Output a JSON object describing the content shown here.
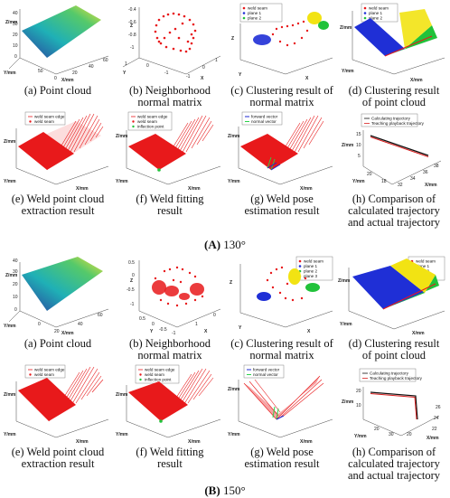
{
  "sections": [
    {
      "label_letter": "(A)",
      "label_angle": "130°",
      "panels": [
        {
          "caption_1": "(a) Point cloud",
          "caption_2": "",
          "z": "Z/mm",
          "y": "Y/mm",
          "x": "X/mm",
          "ticks": [
            "0",
            "10",
            "20",
            "30",
            "40",
            "50",
            "0",
            "20",
            "40",
            "60"
          ]
        },
        {
          "caption_1": "(b) Neighborhood",
          "caption_2": "normal matrix",
          "z": "Z",
          "y": "Y",
          "x": "X",
          "ticks": [
            "-0.4",
            "-0.6",
            "-0.8",
            "-1",
            "1",
            "0",
            "-1",
            "-1",
            "0",
            "1"
          ]
        },
        {
          "caption_1": "(c) Clustering result of",
          "caption_2": "normal matrix",
          "z": "Z",
          "y": "Y",
          "x": "X",
          "legend": [
            "weld seam",
            "plane 1",
            "plane 2"
          ]
        },
        {
          "caption_1": "(d) Clustering result",
          "caption_2": "of point cloud",
          "z": "Z/mm",
          "y": "Y/mm",
          "x": "X/mm",
          "legend": [
            "weld seam",
            "plane 1",
            "plane 2"
          ]
        },
        {
          "caption_1": "(e) Weld point cloud",
          "caption_2": "extraction result",
          "z": "Z/mm",
          "y": "Y/mm",
          "x": "X/mm",
          "legend": [
            "weld seam edge",
            "weld seam"
          ]
        },
        {
          "caption_1": "(f) Weld fitting",
          "caption_2": "result",
          "z": "Z/mm",
          "y": "Y/mm",
          "x": "X/mm",
          "legend": [
            "weld seam edge",
            "weld seam",
            "inflection point"
          ]
        },
        {
          "caption_1": "(g) Weld pose",
          "caption_2": "estimation result",
          "z": "Z/mm",
          "y": "Y/mm",
          "x": "X/mm",
          "legend": [
            "forward vector",
            "normal vector"
          ]
        },
        {
          "caption_1": "(h) Comparison of",
          "caption_2": "calculated trajectory",
          "caption_3": "and actual trajectory",
          "z": "Z/mm",
          "y": "Y/mm",
          "x": "X/mm",
          "legend": [
            "Calculating trajectory",
            "Teaching playback trajectory"
          ],
          "ticks": [
            "15",
            "10",
            "5",
            "20",
            "18",
            "32",
            "34",
            "36",
            "38"
          ]
        }
      ]
    },
    {
      "label_letter": "(B)",
      "label_angle": "150°",
      "panels": [
        {
          "caption_1": "(a) Point cloud",
          "caption_2": "",
          "z": "Z/mm",
          "y": "Y/mm",
          "x": "X/mm",
          "ticks": [
            "0",
            "10",
            "20",
            "30",
            "40",
            "0",
            "20",
            "40",
            "60"
          ]
        },
        {
          "caption_1": "(b) Neighborhood",
          "caption_2": "normal matrix",
          "z": "Z",
          "y": "Y",
          "x": "X",
          "ticks": [
            "0.5",
            "0",
            "-0.5",
            "-1",
            "0.5",
            "0",
            "-0.5",
            "-1",
            "1",
            "0"
          ]
        },
        {
          "caption_1": "(c) Clustering result of",
          "caption_2": "normal matrix",
          "z": "Z",
          "y": "Y",
          "x": "X",
          "legend": [
            "weld seam",
            "plane 1",
            "plane 2",
            "plane 3"
          ]
        },
        {
          "caption_1": "(d) Clustering result",
          "caption_2": "of point cloud",
          "z": "Z/mm",
          "y": "Y/mm",
          "x": "X/mm",
          "legend": [
            "weld seam",
            "plane 1",
            "plane 2",
            "plane 3"
          ]
        },
        {
          "caption_1": "(e) Weld point cloud",
          "caption_2": "extraction result",
          "z": "Z/mm",
          "y": "Y/mm",
          "x": "X/mm",
          "legend": [
            "weld seam edge",
            "weld seam"
          ]
        },
        {
          "caption_1": "(f) Weld fitting",
          "caption_2": "result",
          "z": "Z/mm",
          "y": "Y/mm",
          "x": "X/mm",
          "legend": [
            "weld seam edge",
            "weld seam",
            "inflection point"
          ]
        },
        {
          "caption_1": "(g) Weld pose",
          "caption_2": "estimation result",
          "z": "Z/mm",
          "y": "Y/mm",
          "x": "X/mm",
          "legend": [
            "forward vector",
            "normal vector"
          ]
        },
        {
          "caption_1": "(h) Comparison of",
          "caption_2": "calculated trajectory",
          "caption_3": "and actual trajectory",
          "z": "Z/mm",
          "y": "Y/mm",
          "x": "X/mm",
          "legend": [
            "Calculating trajectory",
            "Teaching playback trajectory"
          ],
          "ticks": [
            "20",
            "10",
            "20",
            "30",
            "20",
            "22",
            "24",
            "26"
          ]
        }
      ]
    }
  ],
  "colors": {
    "weld": "#e8191b",
    "plane1": "#1f2fd6",
    "plane2": "#21c23a",
    "plane3": "#f2e313",
    "forward": "#1c2ad0",
    "normal": "#2bd14a",
    "trajectory_calc": "#111111",
    "trajectory_teach": "#d81e1e"
  },
  "chart_data": [
    {
      "type": "scatter",
      "panel": "A(a)",
      "title": "",
      "description": "3D V-shaped point cloud surface",
      "legend": []
    },
    {
      "type": "scatter",
      "panel": "A(b)",
      "title": "",
      "legend": []
    },
    {
      "type": "scatter",
      "panel": "A(c)",
      "legend": [
        "weld seam",
        "plane 1",
        "plane 2"
      ]
    },
    {
      "type": "scatter",
      "panel": "A(d)",
      "legend": [
        "weld seam",
        "plane 1",
        "plane 2"
      ]
    },
    {
      "type": "scatter",
      "panel": "A(e)",
      "legend": [
        "weld seam edge",
        "weld seam"
      ]
    },
    {
      "type": "scatter",
      "panel": "A(f)",
      "legend": [
        "weld seam edge",
        "weld seam",
        "inflection point"
      ]
    },
    {
      "type": "scatter",
      "panel": "A(g)",
      "legend": [
        "forward vector",
        "normal vector"
      ]
    },
    {
      "type": "line",
      "panel": "A(h)",
      "legend": [
        "Calculating trajectory",
        "Teaching playback trajectory"
      ]
    },
    {
      "type": "scatter",
      "panel": "B(a)",
      "legend": []
    },
    {
      "type": "scatter",
      "panel": "B(b)",
      "legend": []
    },
    {
      "type": "scatter",
      "panel": "B(c)",
      "legend": [
        "weld seam",
        "plane 1",
        "plane 2",
        "plane 3"
      ]
    },
    {
      "type": "scatter",
      "panel": "B(d)",
      "legend": [
        "weld seam",
        "plane 1",
        "plane 2",
        "plane 3"
      ]
    },
    {
      "type": "scatter",
      "panel": "B(e)",
      "legend": [
        "weld seam edge",
        "weld seam"
      ]
    },
    {
      "type": "scatter",
      "panel": "B(f)",
      "legend": [
        "weld seam edge",
        "weld seam",
        "inflection point"
      ]
    },
    {
      "type": "scatter",
      "panel": "B(g)",
      "legend": [
        "forward vector",
        "normal vector"
      ]
    },
    {
      "type": "line",
      "panel": "B(h)",
      "legend": [
        "Calculating trajectory",
        "Teaching playback trajectory"
      ]
    }
  ]
}
